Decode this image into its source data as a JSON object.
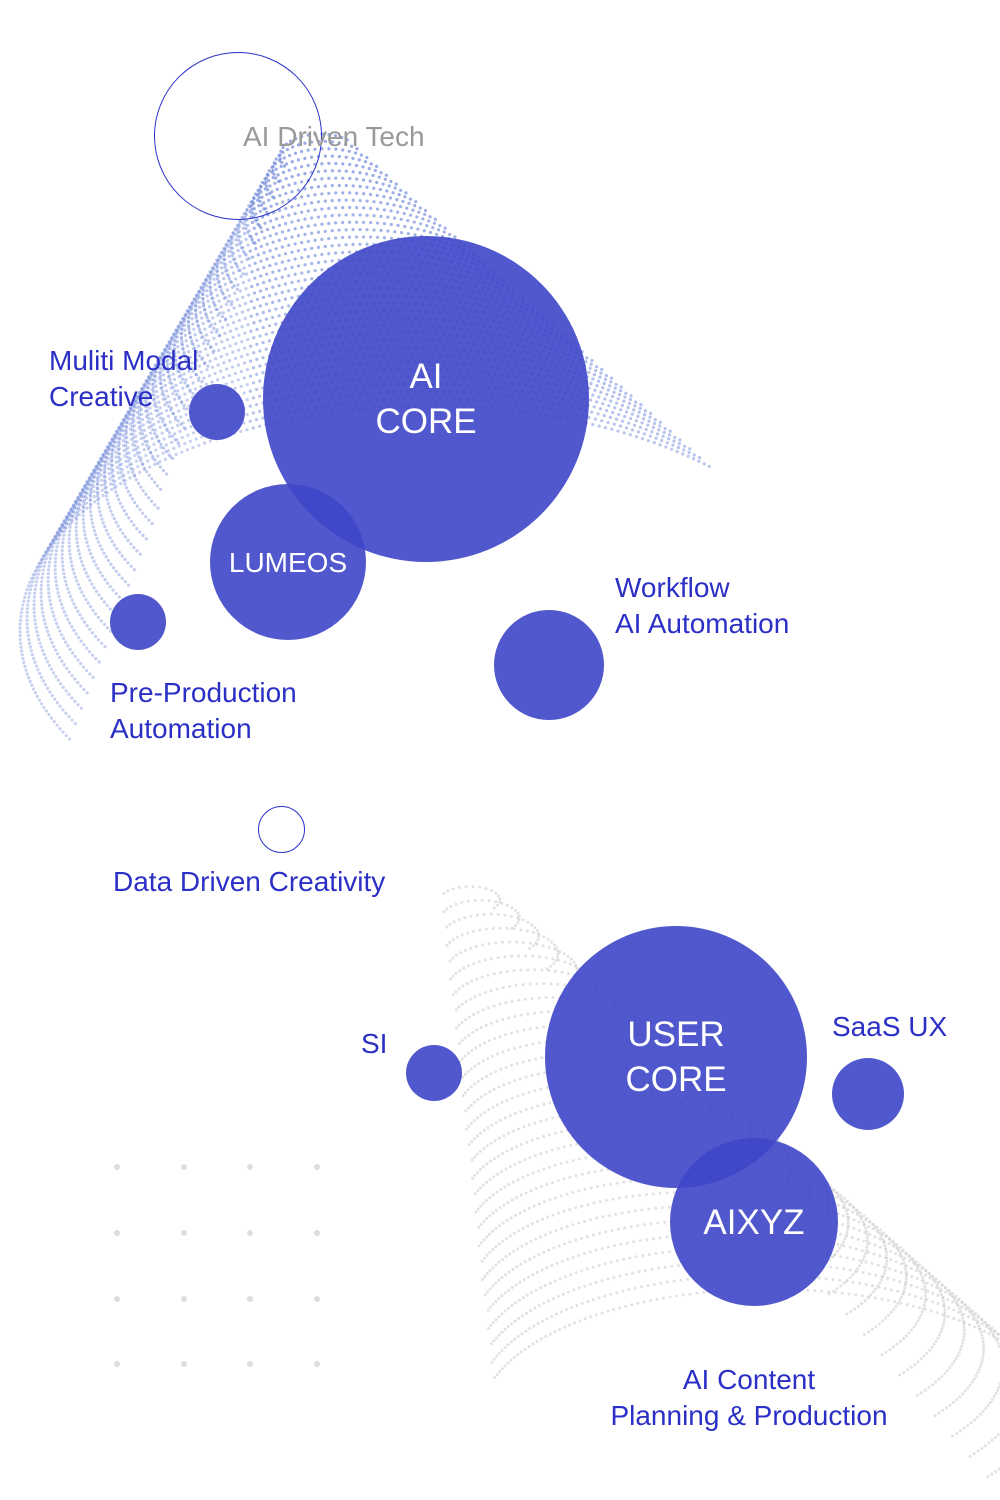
{
  "colors": {
    "circle": "#3e46c8",
    "label": "#2b2fc6",
    "dots_blue": "#6d86d8",
    "dots_gray": "#cfcfd4"
  },
  "nodes": {
    "ai_driven_tech": "AI Driven Tech",
    "ai_core": "AI\nCORE",
    "multi_modal": "Muliti Modal\nCreative",
    "lumeos": "LUMEOS",
    "pre_production": "Pre-Production\nAutomation",
    "workflow": "Workflow\nAI Automation",
    "data_driven": "Data Driven Creativity",
    "si": "SI",
    "user_core": "USER\nCORE",
    "saas_ux": "SaaS UX",
    "aixyz": "AIXYZ",
    "ai_content": "AI Content\nPlanning & Production"
  }
}
